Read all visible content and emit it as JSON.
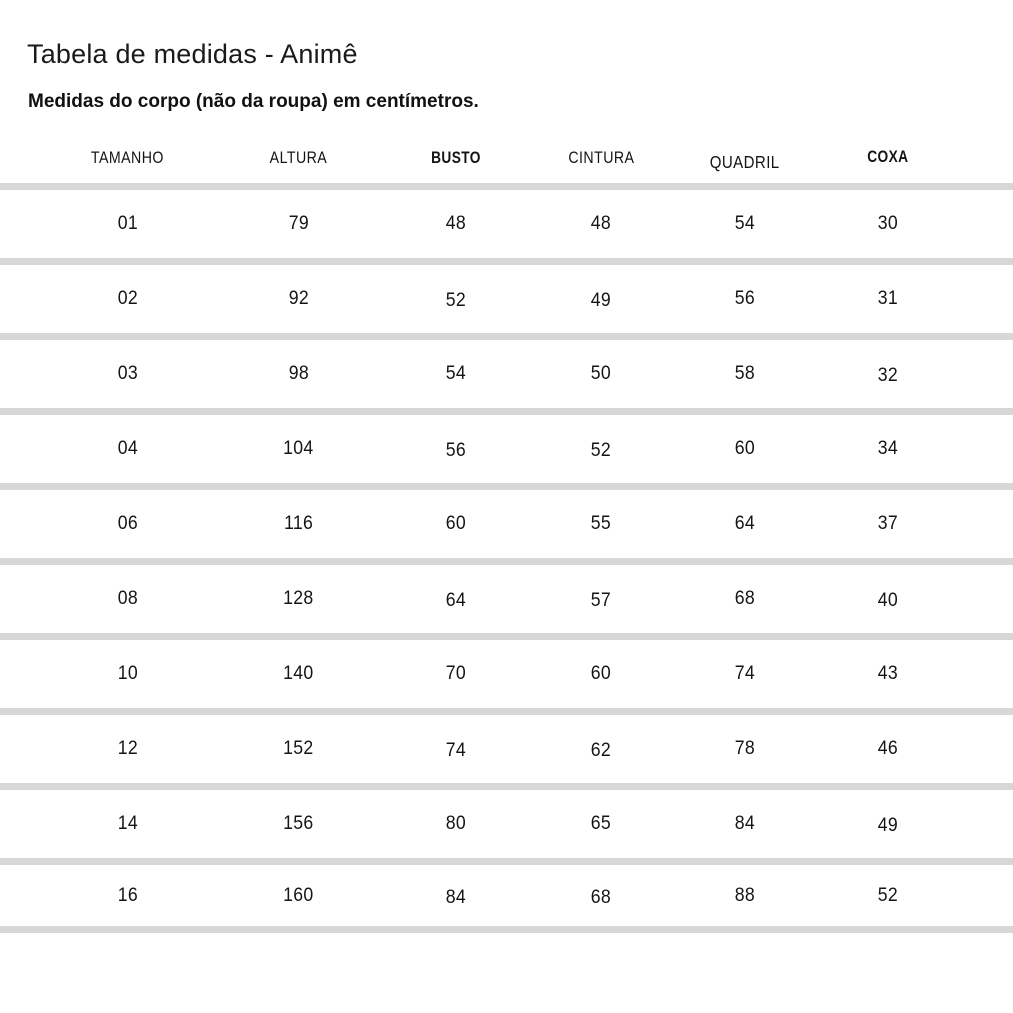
{
  "page": {
    "title": "Tabela de medidas - Animê",
    "subtitle": "Medidas do corpo (não da roupa) em centímetros."
  },
  "table": {
    "columns": [
      "TAMANHO",
      "ALTURA",
      "BUSTO",
      "CINTURA",
      "QUADRIL",
      "COXA"
    ],
    "rows": [
      [
        "01",
        "79",
        "48",
        "48",
        "54",
        "30"
      ],
      [
        "02",
        "92",
        "52",
        "49",
        "56",
        "31"
      ],
      [
        "03",
        "98",
        "54",
        "50",
        "58",
        "32"
      ],
      [
        "04",
        "104",
        "56",
        "52",
        "60",
        "34"
      ],
      [
        "06",
        "116",
        "60",
        "55",
        "64",
        "37"
      ],
      [
        "08",
        "128",
        "64",
        "57",
        "68",
        "40"
      ],
      [
        "10",
        "140",
        "70",
        "60",
        "74",
        "43"
      ],
      [
        "12",
        "152",
        "74",
        "62",
        "78",
        "46"
      ],
      [
        "14",
        "156",
        "80",
        "65",
        "84",
        "49"
      ],
      [
        "16",
        "160",
        "84",
        "68",
        "88",
        "52"
      ]
    ]
  },
  "colors": {
    "divider": "#d7d7d7",
    "text": "#151515",
    "background": "#ffffff"
  }
}
